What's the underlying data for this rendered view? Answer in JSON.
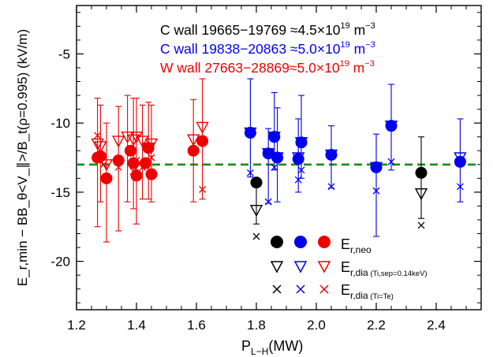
{
  "chart_data": {
    "type": "scatter",
    "xlabel": {
      "main": "P",
      "sub": "L−H",
      "tail": "(MW)"
    },
    "ylabel": "E_r,min − BB_θ<V_∥>/B_t(ρ=0.995) (kV/m)",
    "xlim": [
      1.2,
      2.55
    ],
    "ylim": [
      -23.5,
      -1.5
    ],
    "xticks": [
      {
        "value": 1.2,
        "label": "1.2"
      },
      {
        "value": 1.4,
        "label": "1.4"
      },
      {
        "value": 1.6,
        "label": "1.6"
      },
      {
        "value": 1.8,
        "label": "1.8"
      },
      {
        "value": 2.0,
        "label": "2.0"
      },
      {
        "value": 2.2,
        "label": "2.2"
      },
      {
        "value": 2.4,
        "label": "2.4"
      }
    ],
    "yticks": [
      {
        "value": -5,
        "label": "-5"
      },
      {
        "value": -10,
        "label": "-10"
      },
      {
        "value": -15,
        "label": "-15"
      },
      {
        "value": -20,
        "label": "-20"
      }
    ],
    "reference_line": {
      "y": -13.0,
      "color": "#1a8a1a",
      "style": "dashed"
    },
    "groups_text": [
      {
        "text": "C wall 19665−19769 ≈4.5×10",
        "exp": "19",
        "unit": " m",
        "unit_exp": "−3",
        "color": "#000000"
      },
      {
        "text": "C wall 19838−20863 ≈5.0×10",
        "exp": "19",
        "unit": " m",
        "unit_exp": "−3",
        "color": "#0000ee"
      },
      {
        "text": "W wall 27663−28869≈5.0×10",
        "exp": "19",
        "unit": " m",
        "unit_exp": "−3",
        "color": "#ee0000"
      }
    ],
    "legend_labels": {
      "neo": {
        "main": "E",
        "sub": "r,neo"
      },
      "dia_ti": {
        "main": "E",
        "sub": "r,dia",
        "small": " (Ti,sep=0.14keV)"
      },
      "dia_te": {
        "main": "E",
        "sub": "r,dia",
        "small": " (Ti=Te)"
      }
    },
    "series": [
      {
        "color": "#000000",
        "neo": [
          {
            "x": 1.8,
            "y": -14.3
          },
          {
            "x": 2.35,
            "y": -13.6
          }
        ],
        "dia": [
          {
            "x": 1.8,
            "y": -16.3,
            "lo": -17.3,
            "hi": -14.3
          },
          {
            "x": 2.35,
            "y": -15.1,
            "lo": -16.9,
            "hi": -11.0
          }
        ],
        "te": [
          {
            "x": 1.8,
            "y": -18.2
          },
          {
            "x": 2.35,
            "y": -17.4
          }
        ]
      },
      {
        "color": "#0000ee",
        "neo": [
          {
            "x": 1.78,
            "y": -10.7
          },
          {
            "x": 1.84,
            "y": -12.2
          },
          {
            "x": 1.86,
            "y": -11.0
          },
          {
            "x": 1.87,
            "y": -12.5
          },
          {
            "x": 1.94,
            "y": -12.6
          },
          {
            "x": 1.95,
            "y": -11.4
          },
          {
            "x": 2.05,
            "y": -12.3
          },
          {
            "x": 2.2,
            "y": -13.2
          },
          {
            "x": 2.25,
            "y": -10.2
          },
          {
            "x": 2.48,
            "y": -12.8
          }
        ],
        "dia": [
          {
            "x": 1.78,
            "y": -10.7,
            "lo": -13.9,
            "hi": -6.8
          },
          {
            "x": 1.84,
            "y": -12.2,
            "lo": -15.8,
            "hi": -10.4
          },
          {
            "x": 1.86,
            "y": -11.0,
            "lo": -13.4,
            "hi": -7.8
          },
          {
            "x": 1.87,
            "y": -12.5,
            "lo": -15.7,
            "hi": -8.9
          },
          {
            "x": 1.94,
            "y": -12.5,
            "lo": -15.0,
            "hi": -9.7
          },
          {
            "x": 1.95,
            "y": -11.4,
            "lo": -14.0,
            "hi": -8.0
          },
          {
            "x": 2.05,
            "y": -12.3,
            "lo": -14.7,
            "hi": -10.2
          },
          {
            "x": 2.2,
            "y": -13.2,
            "lo": -18.2,
            "hi": -10.8
          },
          {
            "x": 2.25,
            "y": -10.2,
            "lo": -13.4,
            "hi": -7.2
          },
          {
            "x": 2.48,
            "y": -12.5,
            "lo": -15.7,
            "hi": -9.7
          }
        ],
        "te": [
          {
            "x": 1.78,
            "y": -13.6
          },
          {
            "x": 1.84,
            "y": -15.7
          },
          {
            "x": 1.86,
            "y": -13.2
          },
          {
            "x": 1.94,
            "y": -14.1
          },
          {
            "x": 1.95,
            "y": -13.4
          },
          {
            "x": 2.05,
            "y": -14.6
          },
          {
            "x": 2.2,
            "y": -14.9
          },
          {
            "x": 2.25,
            "y": -12.8
          },
          {
            "x": 2.48,
            "y": -14.6
          }
        ]
      },
      {
        "color": "#ee0000",
        "neo": [
          {
            "x": 1.27,
            "y": -12.5
          },
          {
            "x": 1.28,
            "y": -12.4
          },
          {
            "x": 1.3,
            "y": -14.0
          },
          {
            "x": 1.34,
            "y": -12.7
          },
          {
            "x": 1.38,
            "y": -12.0
          },
          {
            "x": 1.39,
            "y": -12.9
          },
          {
            "x": 1.4,
            "y": -13.8
          },
          {
            "x": 1.43,
            "y": -12.9
          },
          {
            "x": 1.44,
            "y": -11.8
          },
          {
            "x": 1.45,
            "y": -13.7
          },
          {
            "x": 1.59,
            "y": -12.0
          },
          {
            "x": 1.62,
            "y": -11.3
          }
        ],
        "dia": [
          {
            "x": 1.27,
            "y": -11.5,
            "lo": -17.5,
            "hi": -8.2
          },
          {
            "x": 1.28,
            "y": -11.7,
            "lo": -15.7,
            "hi": -8.7
          },
          {
            "x": 1.3,
            "y": -13.0,
            "lo": -18.6,
            "hi": -10.0
          },
          {
            "x": 1.34,
            "y": -11.3,
            "lo": -17.8,
            "hi": -8.8
          },
          {
            "x": 1.37,
            "y": -11.0,
            "lo": -15.7,
            "hi": -8.0
          },
          {
            "x": 1.39,
            "y": -11.2,
            "lo": -16.2,
            "hi": -8.2
          },
          {
            "x": 1.4,
            "y": -11.0,
            "lo": -17.3,
            "hi": -8.2
          },
          {
            "x": 1.42,
            "y": -11.3,
            "lo": -15.5,
            "hi": -8.7
          },
          {
            "x": 1.44,
            "y": -11.8,
            "lo": -15.5,
            "hi": -8.5
          },
          {
            "x": 1.45,
            "y": -11.5,
            "lo": -15.7,
            "hi": -8.7
          },
          {
            "x": 1.59,
            "y": -11.2,
            "lo": -15.7,
            "hi": -8.3
          },
          {
            "x": 1.62,
            "y": -10.3,
            "lo": -15.5,
            "hi": -6.8
          }
        ],
        "te": [
          {
            "x": 1.27,
            "y": -10.9
          },
          {
            "x": 1.29,
            "y": -13.0
          },
          {
            "x": 1.34,
            "y": -13.2
          },
          {
            "x": 1.39,
            "y": -13.5
          },
          {
            "x": 1.4,
            "y": -12.7
          },
          {
            "x": 1.42,
            "y": -13.2
          },
          {
            "x": 1.45,
            "y": -12.5
          },
          {
            "x": 1.59,
            "y": -12.0
          },
          {
            "x": 1.62,
            "y": -14.8
          }
        ]
      }
    ]
  }
}
